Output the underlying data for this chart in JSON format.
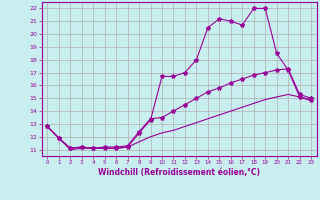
{
  "xlabel": "Windchill (Refroidissement éolien,°C)",
  "background_color": "#c8eef0",
  "grid_color": "#b0b0b0",
  "line_color": "#990099",
  "xlim": [
    -0.5,
    23.5
  ],
  "ylim": [
    10.5,
    22.5
  ],
  "yticks": [
    11,
    12,
    13,
    14,
    15,
    16,
    17,
    18,
    19,
    20,
    21,
    22
  ],
  "xticks": [
    0,
    1,
    2,
    3,
    4,
    5,
    6,
    7,
    8,
    9,
    10,
    11,
    12,
    13,
    14,
    15,
    16,
    17,
    18,
    19,
    20,
    21,
    22,
    23
  ],
  "line1_x": [
    0,
    1,
    2,
    3,
    4,
    5,
    6,
    7,
    8,
    9,
    10,
    11,
    12,
    13,
    14,
    15,
    16,
    17,
    18,
    19,
    20,
    21,
    22,
    23
  ],
  "line1_y": [
    12.8,
    11.9,
    11.1,
    11.2,
    11.1,
    11.1,
    11.1,
    11.2,
    12.3,
    13.3,
    16.7,
    16.7,
    17.0,
    18.0,
    20.5,
    21.2,
    21.0,
    20.7,
    22.0,
    22.0,
    18.5,
    17.2,
    15.1,
    14.9
  ],
  "line2_x": [
    0,
    1,
    2,
    3,
    4,
    5,
    6,
    7,
    8,
    9,
    10,
    11,
    12,
    13,
    14,
    15,
    16,
    17,
    18,
    19,
    20,
    21,
    22,
    23
  ],
  "line2_y": [
    12.8,
    11.9,
    11.1,
    11.2,
    11.1,
    11.2,
    11.2,
    11.3,
    12.4,
    13.4,
    13.5,
    14.0,
    14.5,
    15.0,
    15.5,
    15.8,
    16.2,
    16.5,
    16.8,
    17.0,
    17.2,
    17.3,
    15.3,
    15.0
  ],
  "line3_x": [
    0,
    1,
    2,
    3,
    4,
    5,
    6,
    7,
    8,
    9,
    10,
    11,
    12,
    13,
    14,
    15,
    16,
    17,
    18,
    19,
    20,
    21,
    22,
    23
  ],
  "line3_y": [
    12.8,
    11.9,
    11.0,
    11.1,
    11.1,
    11.1,
    11.1,
    11.2,
    11.6,
    12.0,
    12.3,
    12.5,
    12.8,
    13.1,
    13.4,
    13.7,
    14.0,
    14.3,
    14.6,
    14.9,
    15.1,
    15.3,
    15.1,
    14.8
  ]
}
